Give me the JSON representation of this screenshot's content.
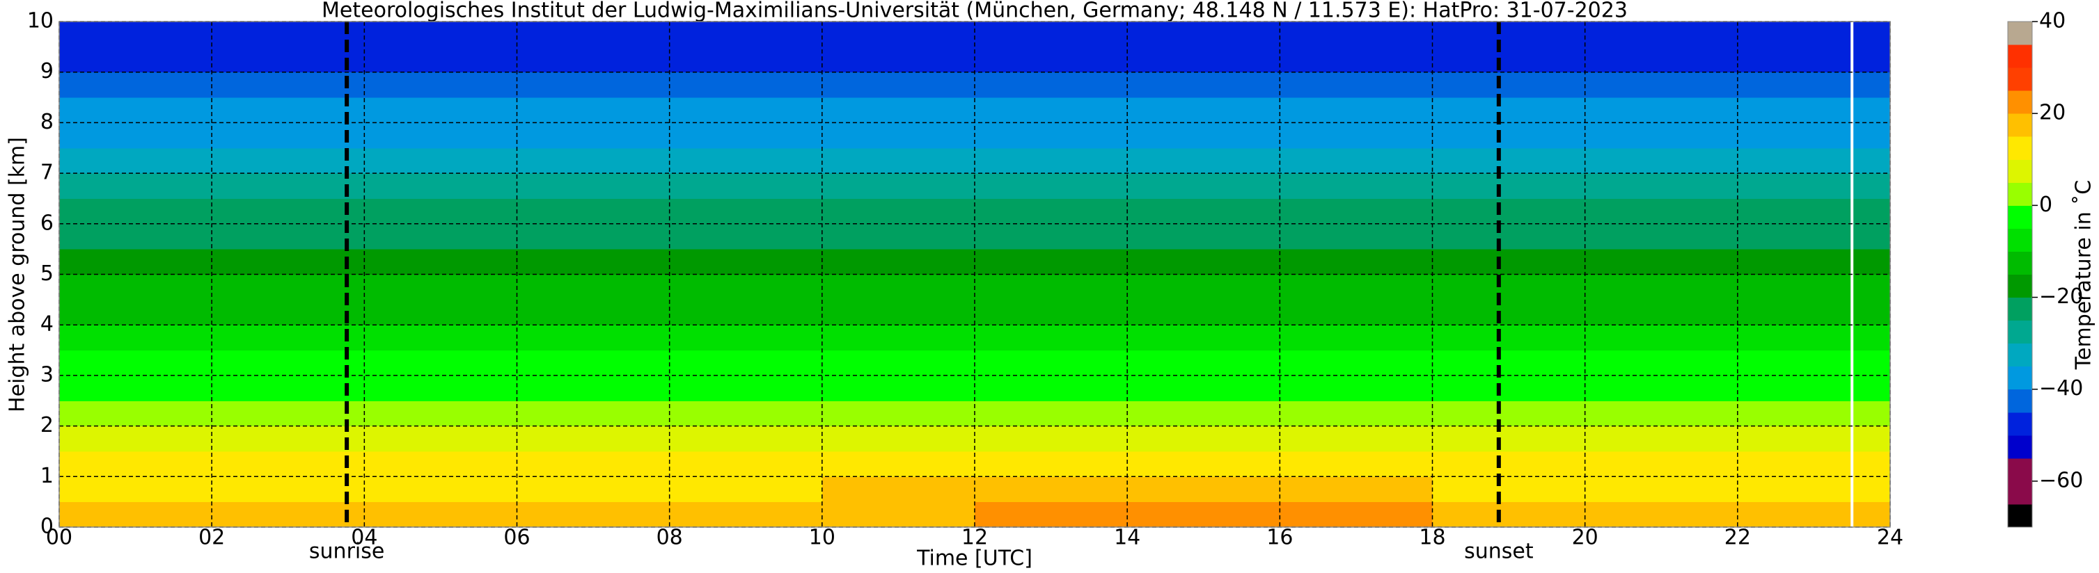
{
  "chart_data": {
    "type": "heatmap",
    "title": "Meteorologisches Institut der Ludwig-Maximilians-Universität (München, Germany; 48.148 N / 11.573 E):    HatPro: 31-07-2023",
    "xlabel": "Time [UTC]",
    "ylabel": "Height above ground [km]",
    "colorbar_label": "Temperature in ˚C",
    "xbins": [
      0,
      2,
      4,
      6,
      8,
      10,
      12,
      14,
      16,
      18,
      20,
      22,
      24
    ],
    "ybins": [
      0,
      0.5,
      1,
      1.5,
      2,
      2.5,
      3,
      3.5,
      4,
      4.5,
      5,
      5.5,
      6,
      6.5,
      7,
      7.5,
      8,
      8.5,
      9,
      9.5,
      10
    ],
    "values": [
      [
        17.3,
        16.5,
        16.5,
        17.3,
        18.1,
        19.8,
        22.3,
        23.1,
        20.6,
        19.0,
        18.1,
        17.3
      ],
      [
        13.8,
        13.3,
        13.3,
        13.8,
        14.3,
        15.3,
        16.8,
        17.3,
        15.8,
        14.8,
        14.3,
        13.8
      ],
      [
        10.3,
        10.1,
        10.1,
        10.3,
        10.5,
        10.8,
        11.3,
        11.5,
        11.0,
        10.6,
        10.5,
        10.3
      ],
      [
        6.8,
        6.8,
        6.8,
        6.8,
        6.8,
        6.8,
        6.8,
        6.8,
        6.8,
        6.8,
        6.8,
        6.8
      ],
      [
        3.3,
        3.3,
        3.3,
        3.3,
        3.3,
        3.3,
        3.3,
        3.3,
        3.3,
        3.3,
        3.3,
        3.3
      ],
      [
        -0.3,
        -0.3,
        -0.3,
        -0.3,
        -0.3,
        -0.3,
        -0.3,
        -0.3,
        -0.3,
        -0.3,
        -0.3,
        -0.3
      ],
      [
        -3.8,
        -3.8,
        -3.8,
        -3.8,
        -3.8,
        -3.8,
        -3.8,
        -3.8,
        -3.8,
        -3.8,
        -3.8,
        -3.8
      ],
      [
        -7.3,
        -7.3,
        -7.3,
        -7.3,
        -7.3,
        -7.3,
        -7.3,
        -7.3,
        -7.3,
        -7.3,
        -7.3,
        -7.3
      ],
      [
        -10.8,
        -10.8,
        -10.8,
        -10.8,
        -10.8,
        -10.8,
        -10.8,
        -10.8,
        -10.8,
        -10.8,
        -10.8,
        -10.8
      ],
      [
        -14.3,
        -14.3,
        -14.3,
        -14.3,
        -14.3,
        -14.3,
        -14.3,
        -14.3,
        -14.3,
        -14.3,
        -14.3,
        -14.3
      ],
      [
        -17.8,
        -17.8,
        -17.8,
        -17.8,
        -17.8,
        -17.8,
        -17.8,
        -17.8,
        -17.8,
        -17.8,
        -17.8,
        -17.8
      ],
      [
        -21.3,
        -21.3,
        -21.3,
        -21.3,
        -21.3,
        -21.3,
        -21.3,
        -21.3,
        -21.3,
        -21.3,
        -21.3,
        -21.3
      ],
      [
        -24.8,
        -24.8,
        -24.8,
        -24.8,
        -24.8,
        -24.8,
        -24.8,
        -24.8,
        -24.8,
        -24.8,
        -24.8,
        -24.8
      ],
      [
        -28.3,
        -28.3,
        -28.3,
        -28.3,
        -28.3,
        -28.3,
        -28.3,
        -28.3,
        -28.3,
        -28.3,
        -28.3,
        -28.3
      ],
      [
        -31.8,
        -31.8,
        -31.8,
        -31.8,
        -31.8,
        -31.8,
        -31.8,
        -31.8,
        -31.8,
        -31.8,
        -31.8,
        -31.8
      ],
      [
        -35.3,
        -35.3,
        -35.3,
        -35.3,
        -35.3,
        -35.3,
        -35.3,
        -35.3,
        -35.3,
        -35.3,
        -35.3,
        -35.3
      ],
      [
        -38.8,
        -38.8,
        -38.8,
        -38.8,
        -38.8,
        -38.8,
        -38.8,
        -38.8,
        -38.8,
        -38.8,
        -38.8,
        -38.8
      ],
      [
        -42.3,
        -42.3,
        -42.3,
        -42.3,
        -42.3,
        -42.3,
        -42.3,
        -42.3,
        -42.3,
        -42.3,
        -42.3,
        -42.3
      ],
      [
        -45.8,
        -45.8,
        -45.8,
        -45.8,
        -45.8,
        -45.8,
        -45.8,
        -45.8,
        -45.8,
        -45.8,
        -45.8,
        -45.8
      ],
      [
        -49.3,
        -49.3,
        -49.3,
        -49.3,
        -49.3,
        -49.3,
        -49.3,
        -49.3,
        -49.3,
        -49.3,
        -49.3,
        -49.3
      ]
    ],
    "xlim": [
      0,
      24
    ],
    "xticks": [
      {
        "value": 0,
        "label": "00"
      },
      {
        "value": 2,
        "label": "02"
      },
      {
        "value": 4,
        "label": "04"
      },
      {
        "value": 6,
        "label": "06"
      },
      {
        "value": 8,
        "label": "08"
      },
      10,
      12,
      14,
      16,
      18,
      20,
      22,
      24
    ],
    "ylim": [
      0,
      10
    ],
    "yticks": [
      0,
      1,
      2,
      3,
      4,
      5,
      6,
      7,
      8,
      9,
      10
    ],
    "grid": true,
    "clim": [
      -70,
      40
    ],
    "cticks": [
      {
        "value": -60,
        "label": "−60"
      },
      {
        "value": -40,
        "label": "−40"
      },
      {
        "value": -20,
        "label": "−20"
      },
      0,
      20,
      40
    ],
    "colormap": [
      "#000000",
      "#8a0a4a",
      "#8a0a4a",
      "#0000cc",
      "#0022dd",
      "#0066dd",
      "#0099e0",
      "#00a8c0",
      "#00a890",
      "#00a060",
      "#009900",
      "#00bb00",
      "#00e000",
      "#00ff00",
      "#99ff00",
      "#ddf500",
      "#ffe800",
      "#ffc000",
      "#ff9000",
      "#ff4000",
      "#ff3000",
      "#b8a890"
    ],
    "annotations": [
      {
        "x": 3.77,
        "label": "sunrise"
      },
      {
        "x": 18.87,
        "label": "sunset"
      }
    ],
    "vlines": [
      {
        "x": 23.5,
        "color": "#ffffff"
      }
    ]
  }
}
